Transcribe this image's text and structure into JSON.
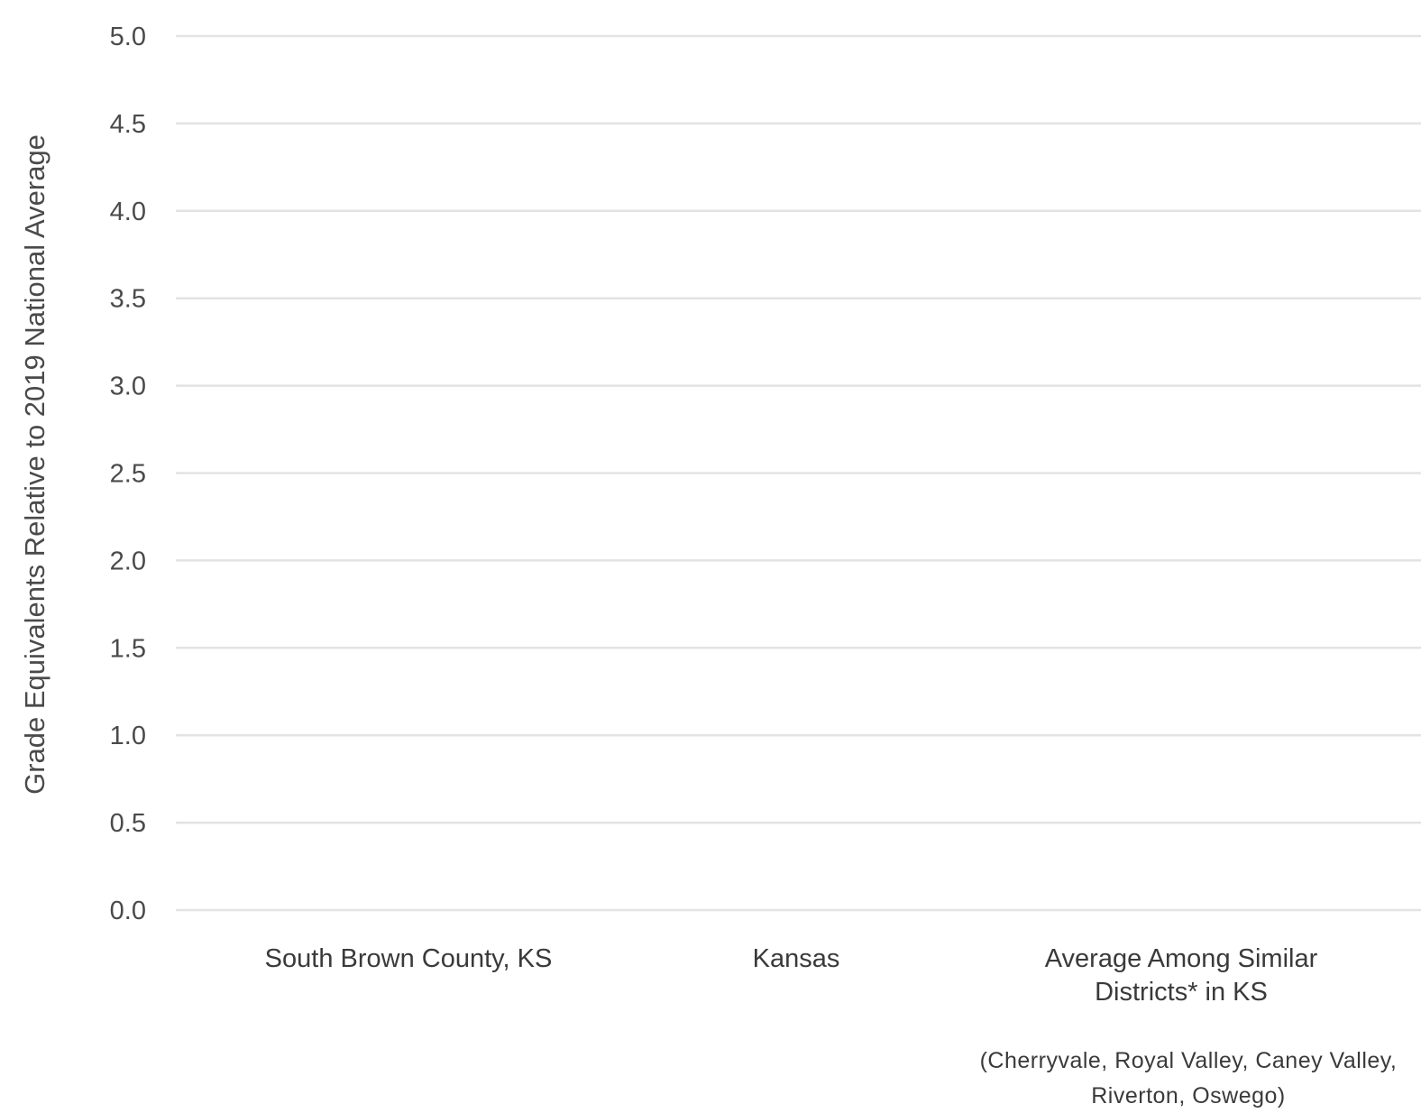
{
  "chart_data": {
    "type": "bar",
    "title": "",
    "xlabel": "",
    "ylabel": "Grade Equivalents Relative to 2019 National Average",
    "ylim": [
      0,
      5
    ],
    "yticks": [
      "0.0",
      "0.5",
      "1.0",
      "1.5",
      "2.0",
      "2.5",
      "3.0",
      "3.5",
      "4.0",
      "4.5",
      "5.0"
    ],
    "grid": true,
    "categories": [
      "South Brown County, KS",
      "Kansas",
      "Average Among Similar Districts* in KS"
    ],
    "category_lines": [
      [
        "South Brown County, KS"
      ],
      [
        "Kansas"
      ],
      [
        "Average Among Similar",
        "Districts* in KS"
      ]
    ],
    "category_notes": [
      [],
      [],
      [
        "(Cherryvale, Royal Valley, Caney Valley,",
        "Riverton, Oswego)"
      ]
    ],
    "values": [
      null,
      null,
      null
    ],
    "colors": {
      "grid": "#e3e3e3",
      "text": "#4a4a4a"
    }
  }
}
